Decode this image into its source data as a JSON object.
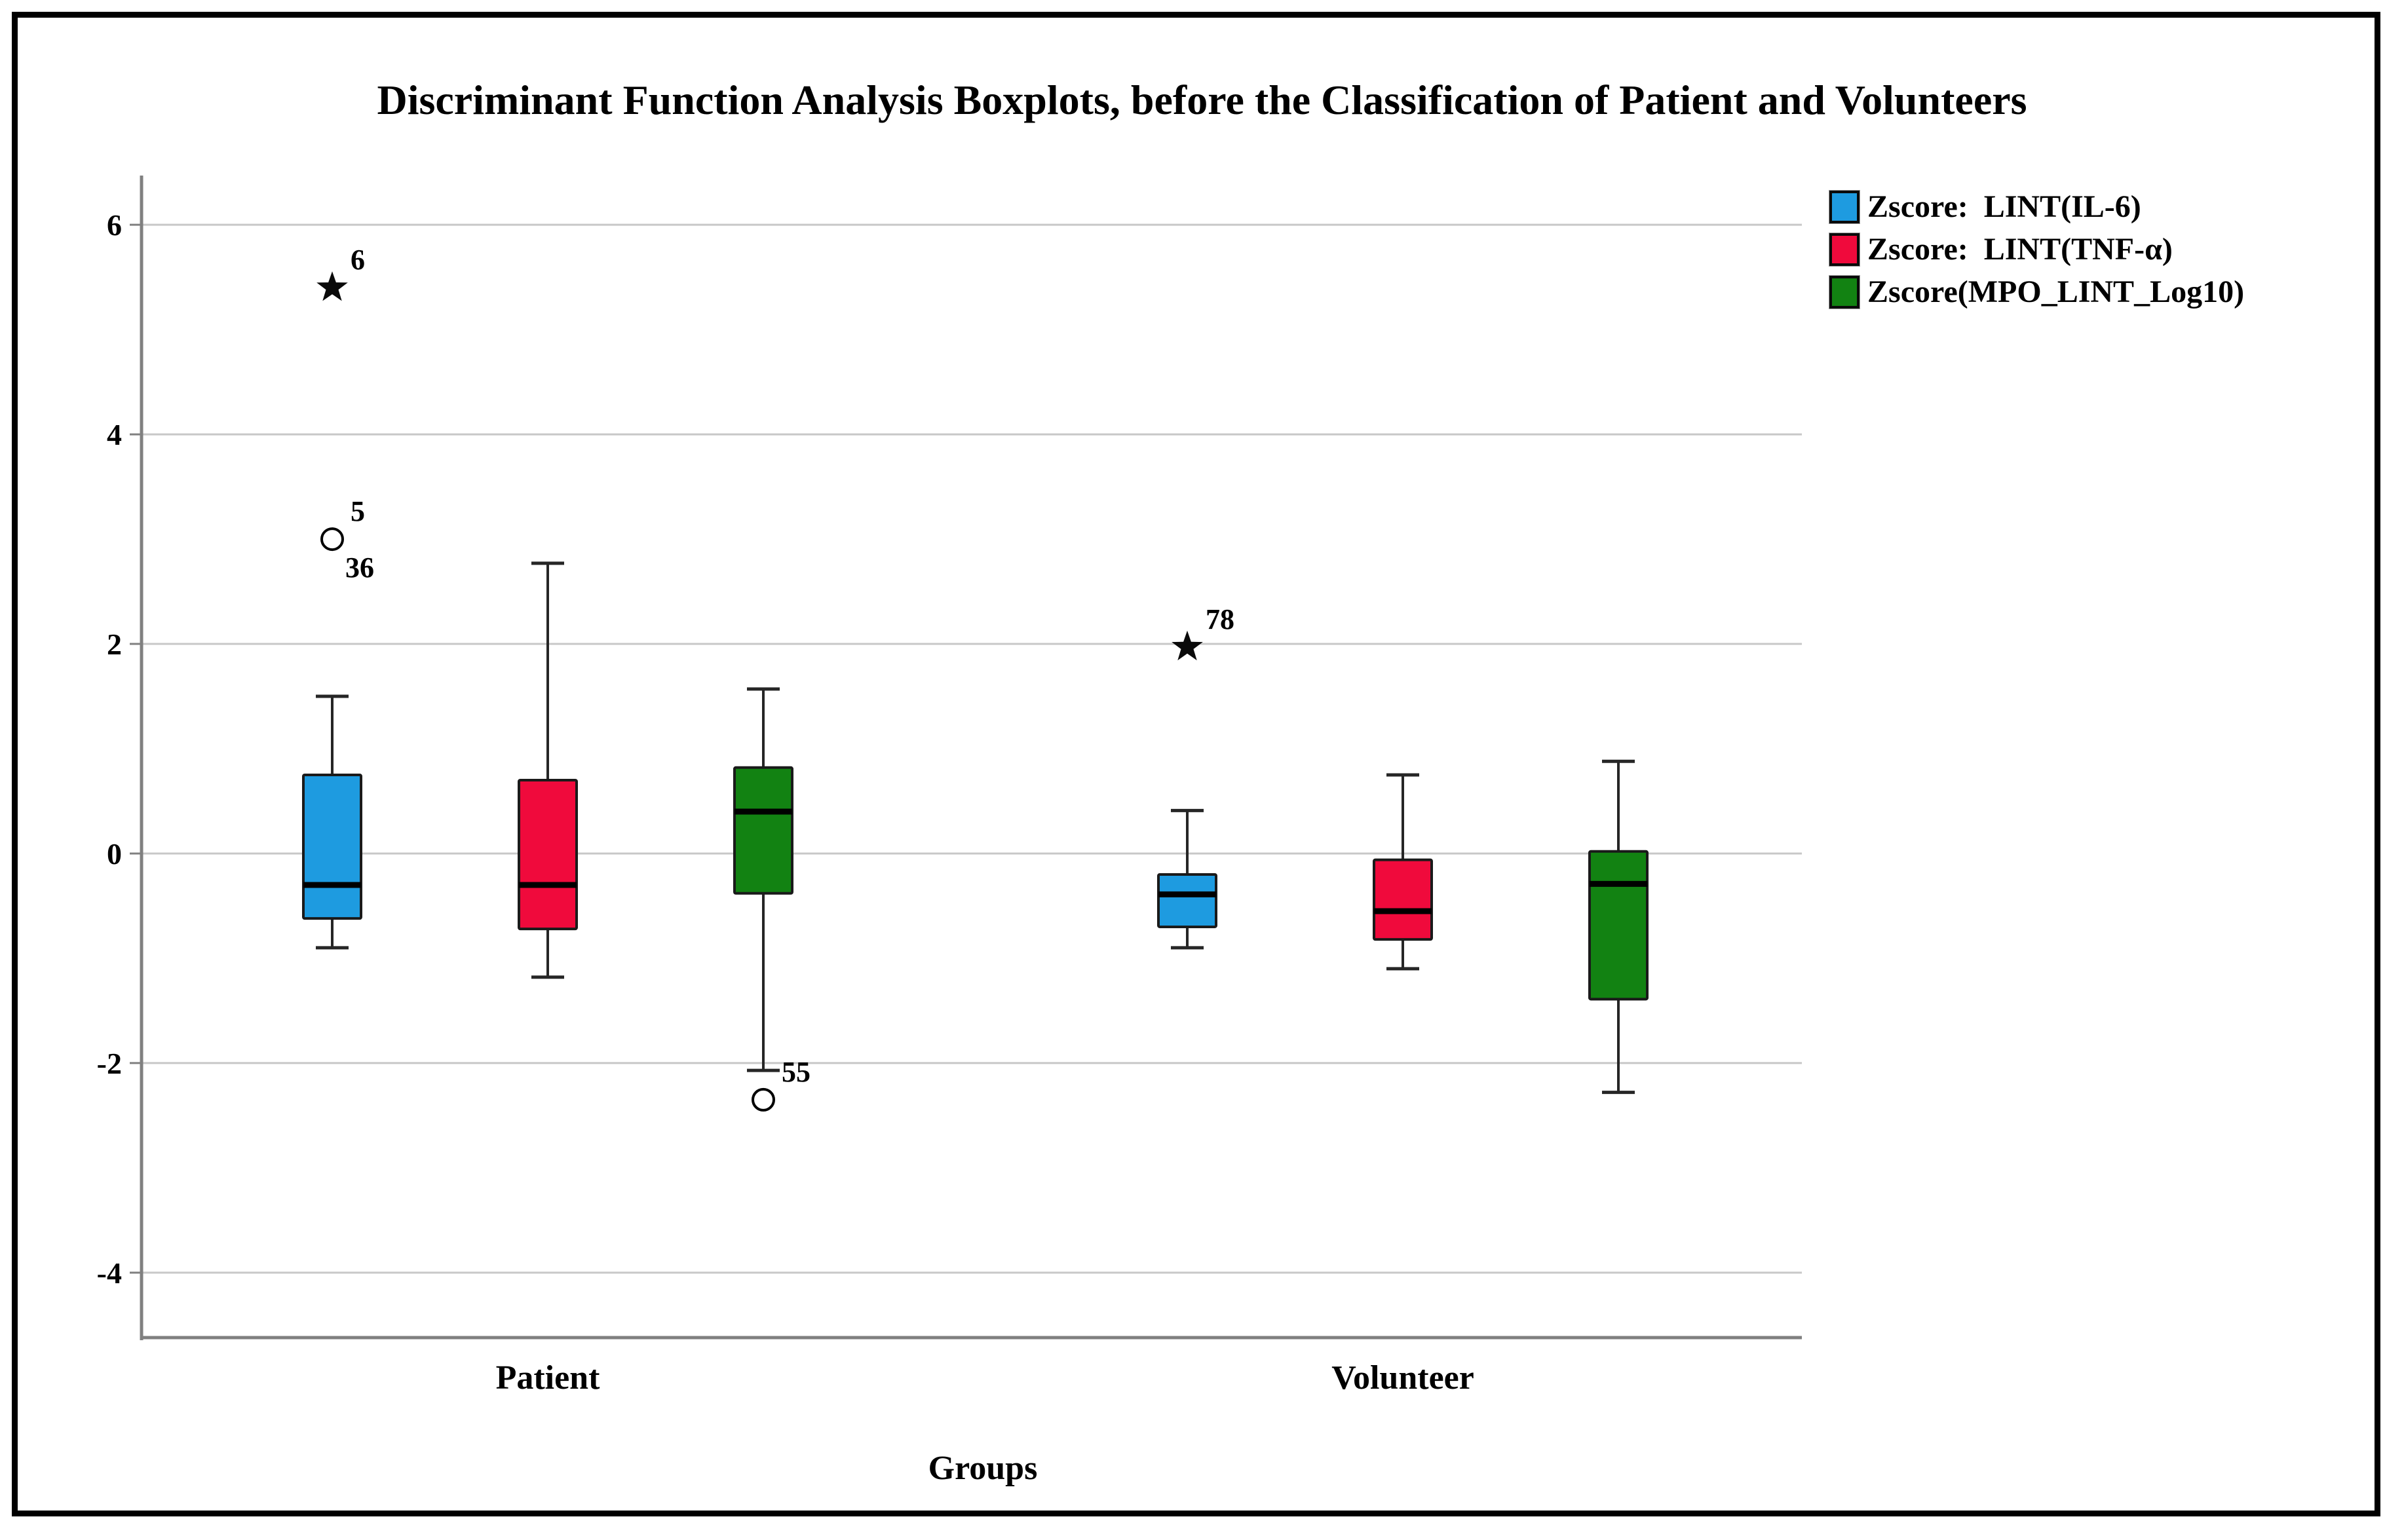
{
  "figure": {
    "title": "Discriminant Function Analysis Boxplots, before the Classification of Patient and Volunteers",
    "background": "#ffffff",
    "border_color": "#000000"
  },
  "legend": {
    "position": "top-right",
    "items": [
      {
        "label": "Zscore:  LINT(IL-6)",
        "color": "#1E9BE0"
      },
      {
        "label": "Zscore:  LINT(TNF-α)",
        "color": "#F00A3C"
      },
      {
        "label": "Zscore(MPO_LINT_Log10)",
        "color": "#128212"
      }
    ]
  },
  "chart_data": {
    "type": "boxplot",
    "title": "Discriminant Function Analysis Boxplots, before the Classification of Patient and Volunteers",
    "xlabel": "Groups",
    "ylabel": "",
    "ylim": [
      -4.62,
      6.47
    ],
    "y_ticks": [
      6,
      4,
      2,
      0,
      -2,
      -4
    ],
    "grid": "horizontal-gridlines-on",
    "legend_position": "top-right",
    "categories": [
      "Patient",
      "Volunteer"
    ],
    "colors": {
      "gridline": "#c8c8c8",
      "axis": "#808080",
      "box_outline": "#1a1a1a",
      "median": "#000000",
      "whisker": "#262626",
      "outlier_fill": "#ffffff"
    },
    "series": [
      {
        "name": "Zscore:  LINT(IL-6)",
        "color": "#1E9BE0",
        "boxes": [
          {
            "category": "Patient",
            "whisker_low": -0.9,
            "q1": -0.62,
            "median": -0.3,
            "q3": 0.75,
            "whisker_high": 1.5,
            "outliers": [
              {
                "type": "circle",
                "value": 3.0,
                "label": "5",
                "label_below": "36"
              },
              {
                "type": "star",
                "value": 5.4,
                "label": "6"
              }
            ]
          },
          {
            "category": "Volunteer",
            "whisker_low": -0.9,
            "q1": -0.7,
            "median": -0.39,
            "q3": -0.2,
            "whisker_high": 0.41,
            "outliers": [
              {
                "type": "star",
                "value": 1.97,
                "label": "78"
              }
            ]
          }
        ]
      },
      {
        "name": "Zscore:  LINT(TNF-α)",
        "color": "#F00A3C",
        "boxes": [
          {
            "category": "Patient",
            "whisker_low": -1.18,
            "q1": -0.72,
            "median": -0.3,
            "q3": 0.7,
            "whisker_high": 2.77,
            "outliers": []
          },
          {
            "category": "Volunteer",
            "whisker_low": -1.1,
            "q1": -0.82,
            "median": -0.55,
            "q3": -0.06,
            "whisker_high": 0.75,
            "outliers": []
          }
        ]
      },
      {
        "name": "Zscore(MPO_LINT_Log10)",
        "color": "#128212",
        "boxes": [
          {
            "category": "Patient",
            "whisker_low": -2.07,
            "q1": -0.38,
            "median": 0.4,
            "q3": 0.82,
            "whisker_high": 1.57,
            "outliers": [
              {
                "type": "circle",
                "value": -2.35,
                "label": "55"
              }
            ]
          },
          {
            "category": "Volunteer",
            "whisker_low": -2.28,
            "q1": -1.39,
            "median": -0.29,
            "q3": 0.02,
            "whisker_high": 0.88,
            "outliers": []
          }
        ]
      }
    ]
  }
}
